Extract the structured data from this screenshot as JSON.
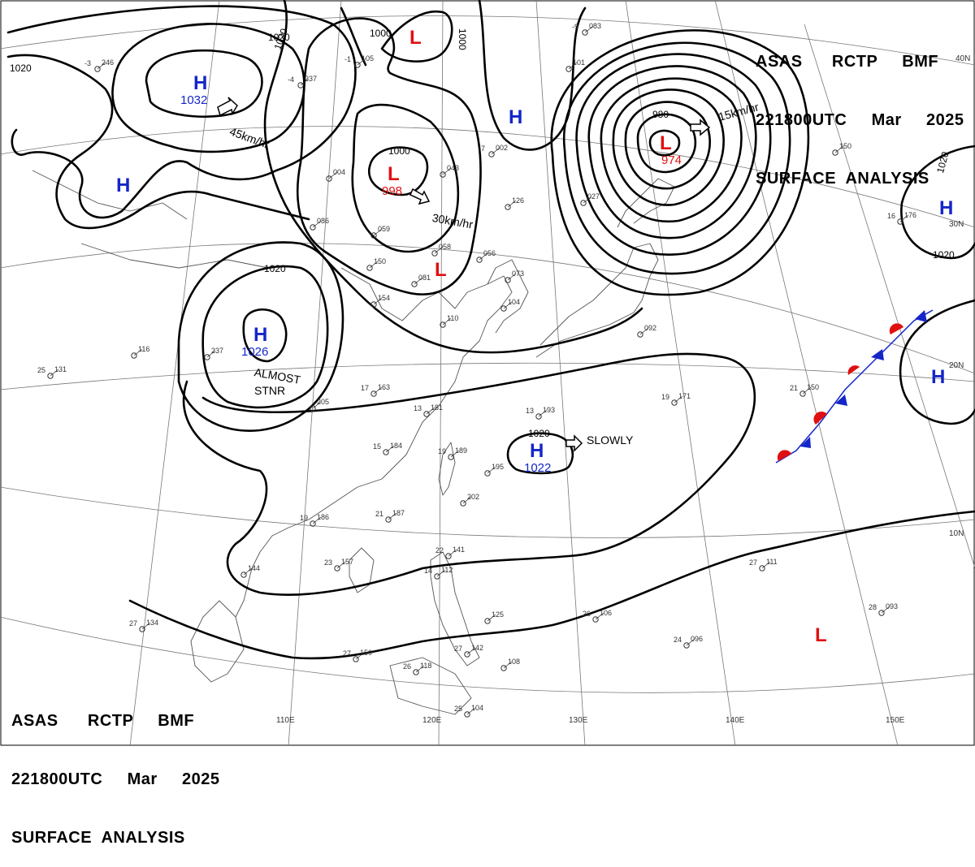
{
  "header": {
    "top_lines": [
      "ASAS      RCTP     BMF",
      "221800UTC     Mar     2025",
      "SURFACE  ANALYSIS"
    ],
    "bottom_lines": [
      "ASAS      RCTP     BMF",
      "221800UTC     Mar     2025",
      "SURFACE  ANALYSIS"
    ]
  },
  "grid_labels": {
    "lon": [
      "110E",
      "120E",
      "130E",
      "140E",
      "150E"
    ],
    "lat": [
      "40N",
      "30N",
      "20N",
      "10N"
    ]
  },
  "pressure_systems": [
    {
      "type": "H",
      "value": "1032"
    },
    {
      "type": "H",
      "value": ""
    },
    {
      "type": "L",
      "value": ""
    },
    {
      "type": "L",
      "value": "998"
    },
    {
      "type": "L",
      "value": ""
    },
    {
      "type": "H",
      "value": ""
    },
    {
      "type": "L",
      "value": "974"
    },
    {
      "type": "H",
      "value": "1026"
    },
    {
      "type": "H",
      "value": "1022"
    },
    {
      "type": "H",
      "value": ""
    },
    {
      "type": "H",
      "value": ""
    },
    {
      "type": "L",
      "value": ""
    }
  ],
  "movement_labels": [
    "45km/hr",
    "30km/hr",
    "15km/hr",
    "SLOWLY"
  ],
  "annotations": [
    "ALMOST",
    "STNR"
  ],
  "isobar_labels": [
    "1020",
    "1020",
    "1020",
    "1000",
    "1000",
    "1000",
    "980",
    "1020",
    "1020",
    "1020",
    "1020"
  ],
  "colors": {
    "high": "#1426c8",
    "low": "#e01010",
    "warm_front": "#e01010",
    "cold_front": "#1426c8",
    "isobar": "#000000"
  },
  "station_reports": [
    {
      "t": "-3",
      "p": "246"
    },
    {
      "t": "-4",
      "p": "237"
    },
    {
      "t": "-1",
      "p": "105"
    },
    {
      "t": "-9",
      "p": "083"
    },
    {
      "t": "",
      "p": "101"
    },
    {
      "t": "-7",
      "p": "002"
    },
    {
      "t": "",
      "p": "043"
    },
    {
      "t": "",
      "p": "126"
    },
    {
      "t": "",
      "p": "004"
    },
    {
      "t": "",
      "p": "086"
    },
    {
      "t": "",
      "p": "059"
    },
    {
      "t": "",
      "p": "058"
    },
    {
      "t": "",
      "p": "056"
    },
    {
      "t": "",
      "p": "073"
    },
    {
      "t": "",
      "p": "150"
    },
    {
      "t": "",
      "p": "154"
    },
    {
      "t": "",
      "p": "081"
    },
    {
      "t": "",
      "p": "110"
    },
    {
      "t": "",
      "p": "104"
    },
    {
      "t": "",
      "p": "027"
    },
    {
      "t": "",
      "p": "092"
    },
    {
      "t": "",
      "p": "116"
    },
    {
      "t": "",
      "p": "237"
    },
    {
      "t": "25",
      "p": "131"
    },
    {
      "t": "",
      "p": "205"
    },
    {
      "t": "17",
      "p": "163"
    },
    {
      "t": "13",
      "p": "181"
    },
    {
      "t": "13",
      "p": "193"
    },
    {
      "t": "19",
      "p": "171"
    },
    {
      "t": "15",
      "p": "184"
    },
    {
      "t": "19",
      "p": "189"
    },
    {
      "t": "",
      "p": "195"
    },
    {
      "t": "",
      "p": "202"
    },
    {
      "t": "19",
      "p": "186"
    },
    {
      "t": "21",
      "p": "187"
    },
    {
      "t": "23",
      "p": "157"
    },
    {
      "t": "",
      "p": "144"
    },
    {
      "t": "22",
      "p": "141"
    },
    {
      "t": "14",
      "p": "112"
    },
    {
      "t": "",
      "p": "125"
    },
    {
      "t": "26",
      "p": "106"
    },
    {
      "t": "27",
      "p": "134"
    },
    {
      "t": "27",
      "p": "150"
    },
    {
      "t": "26",
      "p": "118"
    },
    {
      "t": "27",
      "p": "142"
    },
    {
      "t": "",
      "p": "108"
    },
    {
      "t": "25",
      "p": "104"
    },
    {
      "t": "24",
      "p": "096"
    },
    {
      "t": "28",
      "p": "093"
    },
    {
      "t": "27",
      "p": "111"
    },
    {
      "t": "21",
      "p": "150"
    },
    {
      "t": "16",
      "p": "176"
    },
    {
      "t": "",
      "p": "150"
    }
  ]
}
